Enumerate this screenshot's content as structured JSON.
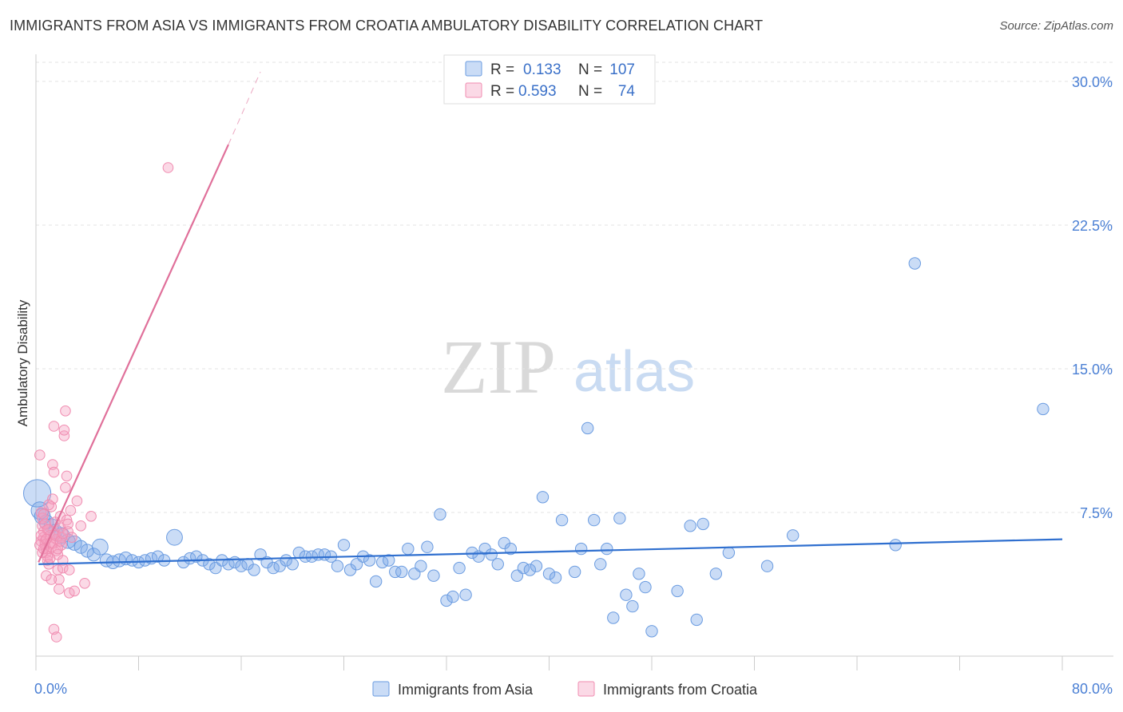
{
  "header": {
    "title": "IMMIGRANTS FROM ASIA VS IMMIGRANTS FROM CROATIA AMBULATORY DISABILITY CORRELATION CHART",
    "source": "Source: ZipAtlas.com"
  },
  "watermark": {
    "zip": "ZIP",
    "atlas": "atlas"
  },
  "chart_data": {
    "type": "scatter",
    "title": "IMMIGRANTS FROM ASIA VS IMMIGRANTS FROM CROATIA AMBULATORY DISABILITY CORRELATION CHART",
    "xlabel": "",
    "ylabel": "Ambulatory Disability",
    "xlim": [
      0,
      80
    ],
    "ylim": [
      0,
      31
    ],
    "x_tick_labels": [
      "0.0%",
      "80.0%"
    ],
    "y_ticks": [
      7.5,
      15.0,
      22.5,
      30.0
    ],
    "y_tick_labels": [
      "7.5%",
      "15.0%",
      "22.5%",
      "30.0%"
    ],
    "grid": true,
    "legend_position": "top-center",
    "colors": {
      "asia": "#6a9be0",
      "croatia": "#f08cb0",
      "asia_line": "#2f6fcf",
      "croatia_line": "#e0709a"
    },
    "legend": [
      {
        "series": "asia",
        "r_label": "R =",
        "r_value": "0.133",
        "n_label": "N =",
        "n_value": "107"
      },
      {
        "series": "croatia",
        "r_label": "R =",
        "r_value": "0.593",
        "n_label": "N =",
        "n_value": "74"
      }
    ],
    "series": [
      {
        "name": "Immigrants from Asia",
        "key": "asia",
        "trend": {
          "x0": 0.2,
          "y0": 4.8,
          "x1": 80,
          "y1": 6.1
        },
        "points": [
          [
            0.1,
            8.5,
            1.9
          ],
          [
            0.3,
            7.6,
            1.2
          ],
          [
            0.5,
            7.3,
            1.1
          ],
          [
            0.8,
            7.0,
            1.0
          ],
          [
            1.2,
            6.8,
            1.0
          ],
          [
            1.5,
            6.5,
            1.0
          ],
          [
            2.0,
            6.3,
            1.1
          ],
          [
            2.5,
            6.0,
            1.0
          ],
          [
            3.0,
            5.9,
            1.0
          ],
          [
            3.5,
            5.7,
            0.9
          ],
          [
            4.0,
            5.5,
            0.9
          ],
          [
            4.5,
            5.3,
            0.9
          ],
          [
            5.0,
            5.7,
            1.1
          ],
          [
            5.5,
            5.0,
            0.9
          ],
          [
            6.0,
            4.9,
            0.9
          ],
          [
            6.5,
            5.0,
            0.9
          ],
          [
            7.0,
            5.1,
            0.9
          ],
          [
            7.5,
            5.0,
            0.8
          ],
          [
            8.0,
            4.9,
            0.8
          ],
          [
            8.5,
            5.0,
            0.8
          ],
          [
            9.0,
            5.1,
            0.8
          ],
          [
            9.5,
            5.2,
            0.8
          ],
          [
            10.0,
            5.0,
            0.8
          ],
          [
            10.8,
            6.2,
            1.1
          ],
          [
            11.5,
            4.9,
            0.8
          ],
          [
            12.0,
            5.1,
            0.8
          ],
          [
            12.5,
            5.2,
            0.8
          ],
          [
            13.0,
            5.0,
            0.8
          ],
          [
            13.5,
            4.8,
            0.8
          ],
          [
            14.0,
            4.6,
            0.8
          ],
          [
            14.5,
            5.0,
            0.8
          ],
          [
            15.0,
            4.8,
            0.8
          ],
          [
            15.5,
            4.9,
            0.8
          ],
          [
            16.0,
            4.7,
            0.8
          ],
          [
            16.5,
            4.8,
            0.8
          ],
          [
            17.0,
            4.5,
            0.8
          ],
          [
            17.5,
            5.3,
            0.8
          ],
          [
            18.0,
            4.9,
            0.8
          ],
          [
            18.5,
            4.6,
            0.8
          ],
          [
            19.0,
            4.7,
            0.8
          ],
          [
            19.5,
            5.0,
            0.8
          ],
          [
            20.0,
            4.8,
            0.8
          ],
          [
            20.5,
            5.4,
            0.8
          ],
          [
            21.0,
            5.2,
            0.8
          ],
          [
            21.5,
            5.2,
            0.8
          ],
          [
            22.0,
            5.3,
            0.8
          ],
          [
            22.5,
            5.3,
            0.8
          ],
          [
            23.0,
            5.2,
            0.8
          ],
          [
            23.5,
            4.7,
            0.8
          ],
          [
            24.0,
            5.8,
            0.8
          ],
          [
            24.5,
            4.5,
            0.8
          ],
          [
            25.0,
            4.8,
            0.8
          ],
          [
            25.5,
            5.2,
            0.8
          ],
          [
            26.0,
            5.0,
            0.8
          ],
          [
            26.5,
            3.9,
            0.8
          ],
          [
            27.0,
            4.9,
            0.8
          ],
          [
            27.5,
            5.0,
            0.8
          ],
          [
            28.0,
            4.4,
            0.8
          ],
          [
            28.5,
            4.4,
            0.8
          ],
          [
            29.0,
            5.6,
            0.8
          ],
          [
            29.5,
            4.3,
            0.8
          ],
          [
            30.0,
            4.7,
            0.8
          ],
          [
            30.5,
            5.7,
            0.8
          ],
          [
            31.0,
            4.2,
            0.8
          ],
          [
            31.5,
            7.4,
            0.8
          ],
          [
            32.0,
            2.9,
            0.8
          ],
          [
            32.5,
            3.1,
            0.8
          ],
          [
            33.0,
            4.6,
            0.8
          ],
          [
            33.5,
            3.2,
            0.8
          ],
          [
            34.0,
            5.4,
            0.8
          ],
          [
            34.5,
            5.2,
            0.8
          ],
          [
            35.0,
            5.6,
            0.8
          ],
          [
            35.5,
            5.3,
            0.8
          ],
          [
            36.0,
            4.8,
            0.8
          ],
          [
            36.5,
            5.9,
            0.8
          ],
          [
            37.0,
            5.6,
            0.8
          ],
          [
            37.5,
            4.2,
            0.8
          ],
          [
            38.0,
            4.6,
            0.8
          ],
          [
            38.5,
            4.5,
            0.8
          ],
          [
            39.0,
            4.7,
            0.8
          ],
          [
            39.5,
            8.3,
            0.8
          ],
          [
            40.0,
            4.3,
            0.8
          ],
          [
            40.5,
            4.1,
            0.8
          ],
          [
            41.0,
            7.1,
            0.8
          ],
          [
            42.0,
            4.4,
            0.8
          ],
          [
            42.5,
            5.6,
            0.8
          ],
          [
            43.0,
            11.9,
            0.8
          ],
          [
            43.5,
            7.1,
            0.8
          ],
          [
            44.0,
            4.8,
            0.8
          ],
          [
            44.5,
            5.6,
            0.8
          ],
          [
            45.0,
            2.0,
            0.8
          ],
          [
            45.5,
            7.2,
            0.8
          ],
          [
            46.0,
            3.2,
            0.8
          ],
          [
            46.5,
            2.6,
            0.8
          ],
          [
            47.0,
            4.3,
            0.8
          ],
          [
            47.5,
            3.6,
            0.8
          ],
          [
            48.0,
            1.3,
            0.8
          ],
          [
            50.0,
            3.4,
            0.8
          ],
          [
            51.0,
            6.8,
            0.8
          ],
          [
            51.5,
            1.9,
            0.8
          ],
          [
            52.0,
            6.9,
            0.8
          ],
          [
            53.0,
            4.3,
            0.8
          ],
          [
            54.0,
            5.4,
            0.8
          ],
          [
            57.0,
            4.7,
            0.8
          ],
          [
            59.0,
            6.3,
            0.8
          ],
          [
            67.0,
            5.8,
            0.8
          ],
          [
            68.5,
            20.5,
            0.8
          ],
          [
            78.5,
            12.9,
            0.8
          ]
        ]
      },
      {
        "name": "Immigrants from Croatia",
        "key": "croatia",
        "trend": {
          "x0": 0.2,
          "y0": 4.9,
          "x1": 15.0,
          "y1": 26.7,
          "x1_ext": 17.5,
          "y1_ext": 30.5
        },
        "points": [
          [
            0.3,
            10.5,
            0.7
          ],
          [
            0.4,
            7.5,
            0.7
          ],
          [
            0.5,
            7.2,
            0.7
          ],
          [
            0.5,
            6.8,
            0.7
          ],
          [
            0.6,
            6.5,
            0.7
          ],
          [
            0.6,
            6.2,
            0.7
          ],
          [
            0.7,
            6.0,
            0.7
          ],
          [
            0.7,
            5.8,
            0.7
          ],
          [
            0.8,
            5.6,
            0.7
          ],
          [
            0.8,
            5.4,
            0.7
          ],
          [
            0.9,
            5.2,
            0.7
          ],
          [
            0.9,
            5.0,
            0.7
          ],
          [
            1.0,
            4.8,
            0.7
          ],
          [
            1.0,
            6.6,
            0.7
          ],
          [
            1.1,
            6.3,
            0.7
          ],
          [
            1.1,
            5.9,
            0.7
          ],
          [
            1.2,
            5.7,
            0.7
          ],
          [
            1.2,
            7.8,
            0.7
          ],
          [
            1.3,
            8.2,
            0.7
          ],
          [
            1.3,
            10.0,
            0.7
          ],
          [
            1.4,
            9.6,
            0.7
          ],
          [
            1.4,
            12.0,
            0.7
          ],
          [
            1.5,
            7.0,
            0.7
          ],
          [
            1.5,
            6.4,
            0.7
          ],
          [
            1.6,
            6.1,
            0.7
          ],
          [
            1.6,
            5.5,
            0.7
          ],
          [
            1.7,
            5.3,
            0.7
          ],
          [
            1.7,
            4.5,
            0.7
          ],
          [
            1.8,
            4.0,
            0.7
          ],
          [
            1.8,
            3.5,
            0.7
          ],
          [
            1.9,
            7.3,
            0.7
          ],
          [
            1.9,
            6.7,
            0.7
          ],
          [
            2.0,
            6.2,
            0.7
          ],
          [
            2.0,
            5.8,
            0.7
          ],
          [
            2.1,
            5.0,
            0.7
          ],
          [
            2.1,
            4.6,
            0.7
          ],
          [
            2.2,
            11.5,
            0.7
          ],
          [
            2.2,
            11.8,
            0.7
          ],
          [
            2.3,
            8.8,
            0.7
          ],
          [
            2.3,
            12.8,
            0.7
          ],
          [
            2.4,
            9.4,
            0.7
          ],
          [
            2.4,
            7.1,
            0.7
          ],
          [
            2.5,
            6.9,
            0.7
          ],
          [
            2.5,
            6.5,
            0.7
          ],
          [
            2.6,
            3.3,
            0.7
          ],
          [
            2.6,
            4.5,
            0.7
          ],
          [
            2.7,
            7.6,
            0.7
          ],
          [
            2.8,
            6.2,
            0.7
          ],
          [
            3.0,
            3.4,
            0.7
          ],
          [
            3.2,
            8.1,
            0.7
          ],
          [
            3.5,
            6.8,
            0.7
          ],
          [
            3.8,
            3.8,
            0.7
          ],
          [
            4.3,
            7.3,
            0.7
          ],
          [
            10.3,
            25.5,
            0.7
          ],
          [
            0.4,
            6.0,
            0.7
          ],
          [
            0.6,
            7.4,
            0.7
          ],
          [
            0.8,
            4.2,
            0.7
          ],
          [
            1.0,
            7.9,
            0.7
          ],
          [
            1.2,
            4.0,
            0.7
          ],
          [
            1.4,
            1.4,
            0.7
          ],
          [
            1.6,
            1.0,
            0.7
          ],
          [
            0.5,
            5.4,
            0.7
          ],
          [
            0.7,
            6.9,
            0.7
          ],
          [
            0.9,
            6.6,
            0.7
          ],
          [
            1.1,
            5.1,
            0.7
          ],
          [
            1.3,
            5.9,
            0.7
          ],
          [
            1.5,
            6.3,
            0.7
          ],
          [
            1.7,
            5.6,
            0.7
          ],
          [
            1.9,
            6.0,
            0.7
          ],
          [
            2.1,
            6.4,
            0.7
          ],
          [
            0.3,
            5.8,
            0.7
          ],
          [
            0.4,
            6.3,
            0.7
          ],
          [
            0.6,
            5.6,
            0.7
          ],
          [
            0.8,
            6.1,
            0.7
          ]
        ]
      }
    ]
  },
  "bottom_legend": [
    {
      "series": "asia",
      "label": "Immigrants from Asia"
    },
    {
      "series": "croatia",
      "label": "Immigrants from Croatia"
    }
  ]
}
